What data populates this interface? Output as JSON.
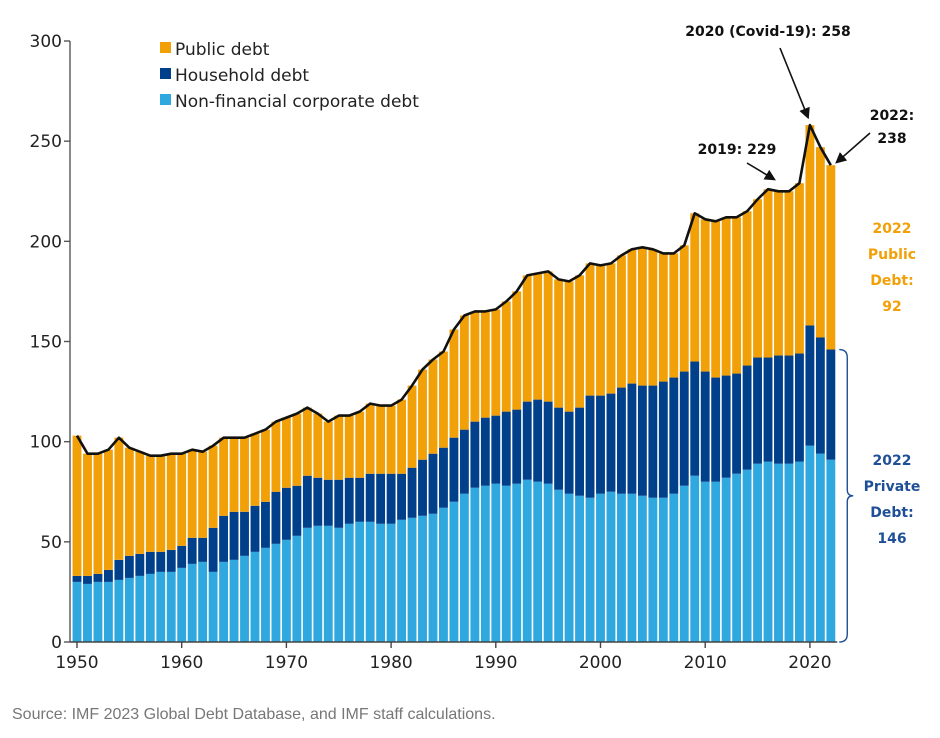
{
  "chart_data": {
    "type": "bar",
    "stacked": true,
    "title": "",
    "xlabel": "",
    "ylabel": "",
    "ylim": [
      0,
      300
    ],
    "yticks": [
      0,
      50,
      100,
      150,
      200,
      250,
      300
    ],
    "xticks": [
      1950,
      1960,
      1970,
      1980,
      1990,
      2000,
      2010,
      2020
    ],
    "legend_position": "top-left",
    "grid": false,
    "x": [
      1950,
      1951,
      1952,
      1953,
      1954,
      1955,
      1956,
      1957,
      1958,
      1959,
      1960,
      1961,
      1962,
      1963,
      1964,
      1965,
      1966,
      1967,
      1968,
      1969,
      1970,
      1971,
      1972,
      1973,
      1974,
      1975,
      1976,
      1977,
      1978,
      1979,
      1980,
      1981,
      1982,
      1983,
      1984,
      1985,
      1986,
      1987,
      1988,
      1989,
      1990,
      1991,
      1992,
      1993,
      1994,
      1995,
      1996,
      1997,
      1998,
      1999,
      2000,
      2001,
      2002,
      2003,
      2004,
      2005,
      2006,
      2007,
      2008,
      2009,
      2010,
      2011,
      2012,
      2013,
      2014,
      2015,
      2016,
      2017,
      2018,
      2019,
      2020,
      2021,
      2022
    ],
    "series": [
      {
        "name": "Non-financial corporate debt",
        "color": "#2fa8e0",
        "values": [
          30,
          29,
          30,
          30,
          31,
          32,
          33,
          34,
          35,
          35,
          37,
          39,
          40,
          35,
          40,
          41,
          43,
          45,
          47,
          49,
          51,
          53,
          57,
          58,
          58,
          57,
          59,
          60,
          60,
          59,
          59,
          61,
          62,
          63,
          64,
          67,
          70,
          74,
          77,
          78,
          79,
          78,
          79,
          81,
          80,
          79,
          76,
          74,
          73,
          72,
          74,
          75,
          74,
          74,
          73,
          72,
          72,
          74,
          78,
          83,
          80,
          80,
          82,
          84,
          86,
          89,
          90,
          89,
          89,
          90,
          98,
          94,
          91
        ]
      },
      {
        "name": "Household debt",
        "color": "#003f8a",
        "values": [
          3,
          4,
          4,
          6,
          10,
          11,
          11,
          11,
          10,
          11,
          11,
          13,
          12,
          22,
          23,
          24,
          22,
          23,
          23,
          26,
          26,
          25,
          26,
          24,
          23,
          24,
          23,
          22,
          24,
          25,
          25,
          23,
          25,
          28,
          30,
          30,
          32,
          32,
          33,
          34,
          34,
          37,
          37,
          39,
          41,
          41,
          41,
          41,
          44,
          51,
          49,
          49,
          53,
          55,
          55,
          56,
          58,
          58,
          57,
          57,
          55,
          52,
          51,
          50,
          52,
          53,
          52,
          54,
          54,
          54,
          60,
          58,
          55
        ]
      },
      {
        "name": "Public debt",
        "color": "#f2a007",
        "values": [
          70,
          61,
          60,
          60,
          61,
          54,
          51,
          48,
          48,
          48,
          46,
          44,
          43,
          41,
          39,
          37,
          37,
          36,
          36,
          35,
          35,
          36,
          34,
          32,
          29,
          32,
          31,
          33,
          35,
          34,
          34,
          37,
          41,
          45,
          47,
          48,
          54,
          57,
          55,
          53,
          53,
          55,
          59,
          63,
          63,
          65,
          64,
          65,
          66,
          66,
          65,
          65,
          66,
          67,
          69,
          68,
          64,
          62,
          63,
          74,
          76,
          78,
          79,
          78,
          77,
          79,
          84,
          82,
          82,
          85,
          100,
          95,
          92
        ]
      }
    ],
    "totals": [
      103,
      94,
      94,
      96,
      102,
      97,
      95,
      93,
      93,
      94,
      94,
      96,
      95,
      98,
      102,
      102,
      102,
      104,
      106,
      110,
      112,
      114,
      117,
      114,
      110,
      113,
      113,
      115,
      119,
      118,
      118,
      121,
      128,
      136,
      141,
      145,
      156,
      163,
      165,
      165,
      166,
      170,
      175,
      183,
      184,
      185,
      181,
      180,
      183,
      189,
      188,
      189,
      193,
      196,
      197,
      196,
      194,
      194,
      198,
      214,
      211,
      210,
      212,
      212,
      215,
      221,
      226,
      225,
      225,
      229,
      258,
      247,
      238
    ],
    "legend": [
      "Public debt",
      "Household debt",
      "Non-financial corporate debt"
    ],
    "annotations": [
      {
        "label": "2020 (Covid-19): 258",
        "year": 2020,
        "value": 258
      },
      {
        "label": "2019: 229",
        "year": 2019,
        "value": 229
      },
      {
        "label": "2022:",
        "label2": "238",
        "year": 2022,
        "value": 238
      },
      {
        "lines": [
          "2022",
          "Public",
          "Debt:",
          "92"
        ],
        "color": "#f2a007"
      },
      {
        "lines": [
          "2022",
          "Private",
          "Debt:",
          "146"
        ],
        "color": "#1f4f96"
      }
    ]
  },
  "source": "Source: IMF 2023 Global Debt Database, and IMF staff calculations."
}
